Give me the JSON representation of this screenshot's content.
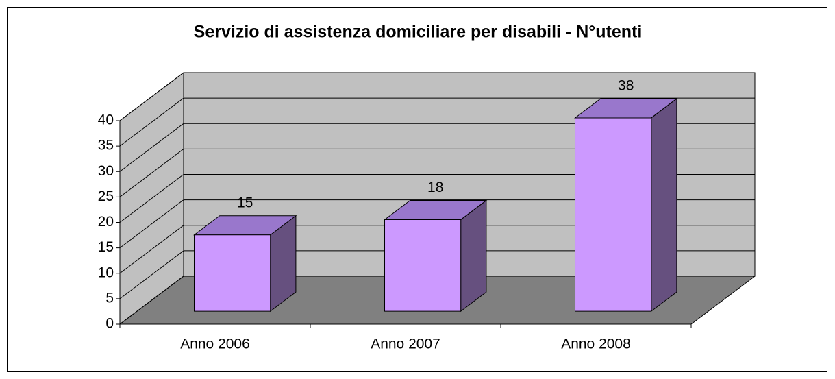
{
  "chart_data": {
    "type": "bar3d",
    "title": "Servizio di assistenza domiciliare per disabili - N°utenti",
    "categories": [
      "Anno 2006",
      "Anno 2007",
      "Anno 2008"
    ],
    "values": [
      15,
      18,
      38
    ],
    "color": "#cc99ff",
    "ylim": [
      0,
      40
    ],
    "yticks": [
      0,
      5,
      10,
      15,
      20,
      25,
      30,
      35,
      40
    ],
    "grid": true
  }
}
